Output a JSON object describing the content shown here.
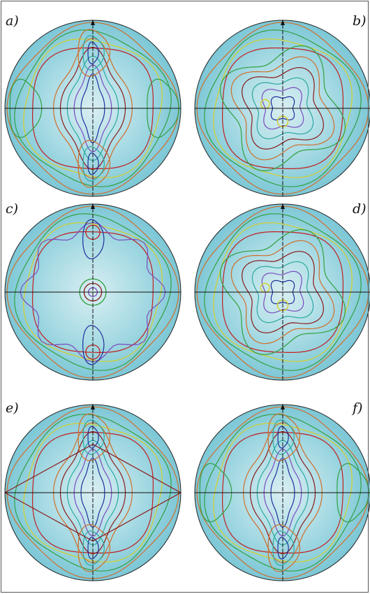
{
  "panels": [
    {
      "label": "a)",
      "style": "cross"
    },
    {
      "label": "b)",
      "style": "diamond"
    },
    {
      "label": "c)",
      "style": "dot"
    },
    {
      "label": "d)",
      "style": "diamond"
    },
    {
      "label": "e)",
      "style": "x"
    },
    {
      "label": "f)",
      "style": "cross"
    }
  ],
  "colors": {
    "fill": "#7cc7d6",
    "fill_light": "#d8eef2",
    "fill_mid": "#a9dbe4",
    "contours": [
      "#1f2f9a",
      "#7a4bc0",
      "#2aa8a0",
      "#8a1a1a",
      "#d06e2a",
      "#30a040",
      "#d6d02a",
      "#c02020",
      "#5a6ad0"
    ],
    "axis": "#111111"
  },
  "icons": {
    "axis_arrow": "arrow-up-icon"
  }
}
